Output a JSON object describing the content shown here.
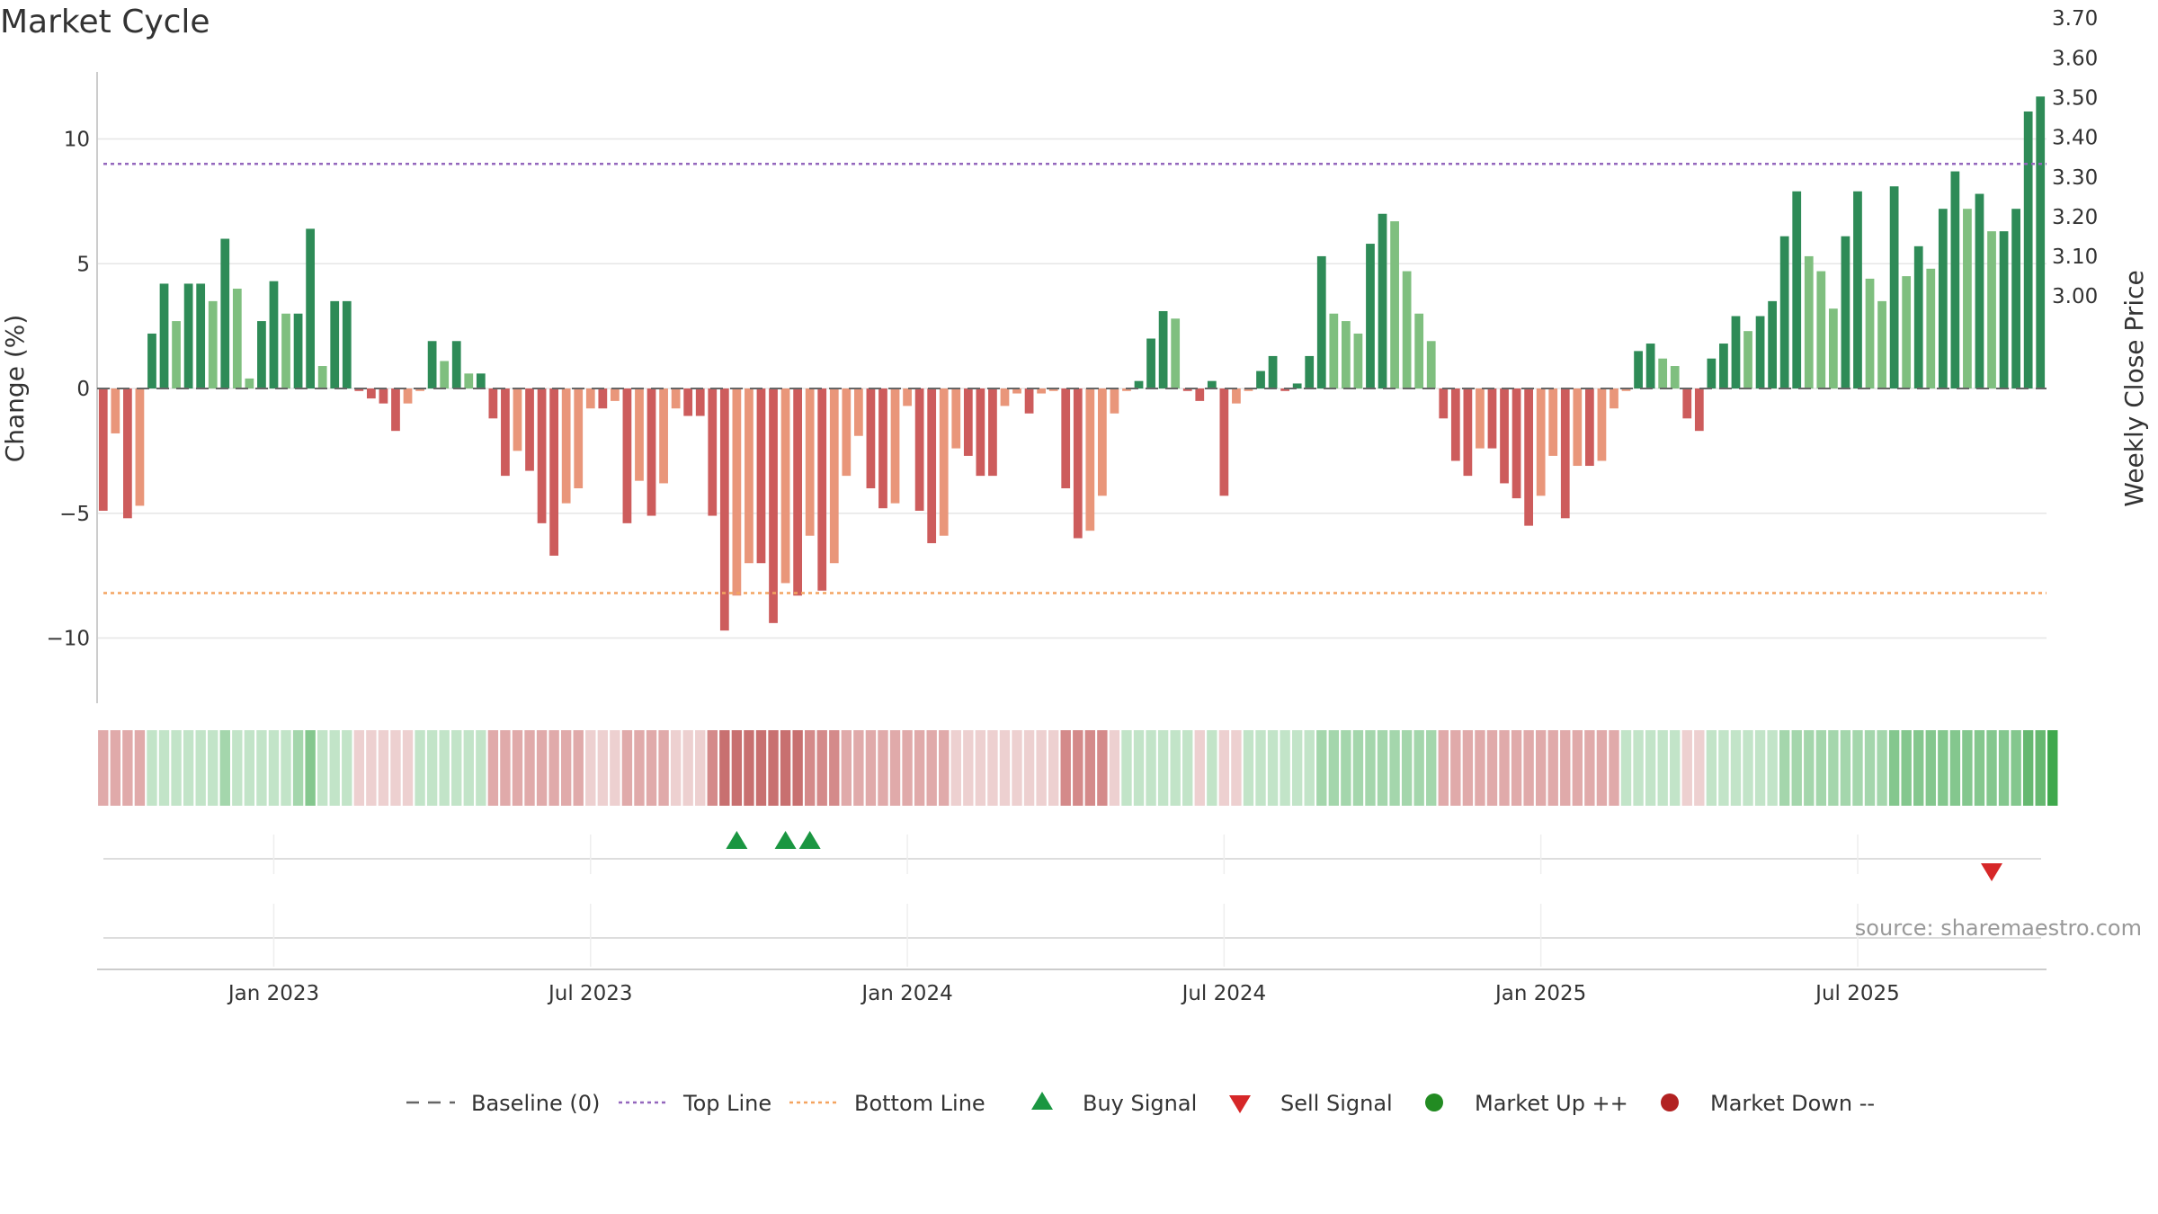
{
  "page": {
    "title": "Market Cycle",
    "source": "source: sharemaestro.com"
  },
  "chart_data": {
    "type": "bar",
    "title": "Market Cycle",
    "ylabel": "Change (%)",
    "y2label": "Weekly Close Price",
    "ylim": [
      -12.5,
      12.5
    ],
    "y2lim": [
      2.975,
      3.75
    ],
    "yticks": [
      {
        "value": 10,
        "label": "10"
      },
      {
        "value": 5,
        "label": "5"
      },
      {
        "value": 0,
        "label": "0"
      },
      {
        "value": -5,
        "label": "−5"
      },
      {
        "value": -10,
        "label": "−10"
      }
    ],
    "y2ticks": [
      {
        "value": 3.7,
        "label": "3.70"
      },
      {
        "value": 3.6,
        "label": "3.60"
      },
      {
        "value": 3.5,
        "label": "3.50"
      },
      {
        "value": 3.4,
        "label": "3.40"
      },
      {
        "value": 3.3,
        "label": "3.30"
      },
      {
        "value": 3.2,
        "label": "3.20"
      },
      {
        "value": 3.1,
        "label": "3.10"
      },
      {
        "value": 3.0,
        "label": "3.00"
      }
    ],
    "xticks": [
      {
        "week": 14,
        "label": "Jan 2023"
      },
      {
        "week": 40,
        "label": "Jul 2023"
      },
      {
        "week": 66,
        "label": "Jan 2024"
      },
      {
        "week": 92,
        "label": "Jul 2024"
      },
      {
        "week": 118,
        "label": "Jan 2025"
      },
      {
        "week": 144,
        "label": "Jul 2025"
      }
    ],
    "top_line": 9.0,
    "bottom_line": -8.2,
    "baseline": 0,
    "values": [
      -4.9,
      -1.8,
      -5.2,
      -4.7,
      2.2,
      4.2,
      2.7,
      4.2,
      4.2,
      3.5,
      6.0,
      4.0,
      0.4,
      2.7,
      4.3,
      3.0,
      3.0,
      6.4,
      0.9,
      3.5,
      3.5,
      -0.1,
      -0.4,
      -0.6,
      -1.7,
      -0.6,
      -0.1,
      1.9,
      1.1,
      1.9,
      0.6,
      0.6,
      -1.2,
      -3.5,
      -2.5,
      -3.3,
      -5.4,
      -6.7,
      -4.6,
      -4.0,
      -0.8,
      -0.8,
      -0.5,
      -5.4,
      -3.7,
      -5.1,
      -3.8,
      -0.8,
      -1.1,
      -1.1,
      -5.1,
      -9.7,
      -8.3,
      -7.0,
      -7.0,
      -9.4,
      -7.8,
      -8.3,
      -5.9,
      -8.1,
      -7.0,
      -3.5,
      -1.9,
      -4.0,
      -4.8,
      -4.6,
      -0.7,
      -4.9,
      -6.2,
      -5.9,
      -2.4,
      -2.7,
      -3.5,
      -3.5,
      -0.7,
      -0.2,
      -1.0,
      -0.2,
      -0.1,
      -4.0,
      -6.0,
      -5.7,
      -4.3,
      -1.0,
      -0.1,
      0.3,
      2.0,
      3.1,
      2.8,
      -0.1,
      -0.5,
      0.3,
      -4.3,
      -0.6,
      -0.1,
      0.7,
      1.3,
      -0.1,
      0.2,
      1.3,
      5.3,
      3.0,
      2.7,
      2.2,
      5.8,
      7.0,
      6.7,
      4.7,
      3.0,
      1.9,
      -1.2,
      -2.9,
      -3.5,
      -2.4,
      -2.4,
      -3.8,
      -4.4,
      -5.5,
      -4.3,
      -2.7,
      -5.2,
      -3.1,
      -3.1,
      -2.9,
      -0.8,
      -0.1,
      1.5,
      1.8,
      1.2,
      0.9,
      -1.2,
      -1.7,
      1.2,
      1.8,
      2.9,
      2.3,
      2.9,
      3.5,
      6.1,
      7.9,
      5.3,
      4.7,
      3.2,
      6.1,
      7.9,
      4.4,
      3.5,
      8.1,
      4.5,
      5.7,
      4.8,
      7.2,
      8.7,
      7.2,
      7.8,
      6.3,
      6.3,
      7.2,
      11.1,
      11.7
    ],
    "heat_levels": [
      -2,
      -2,
      -2,
      -2,
      1,
      1,
      1,
      1,
      1,
      1,
      2,
      1,
      1,
      1,
      1,
      1,
      2,
      3,
      1,
      1,
      1,
      -1,
      -1,
      -1,
      -1,
      -1,
      1,
      1,
      1,
      1,
      1,
      1,
      -2,
      -2,
      -2,
      -2,
      -2,
      -2,
      -2,
      -2,
      -1,
      -1,
      -1,
      -2,
      -2,
      -2,
      -2,
      -1,
      -1,
      -1,
      -3,
      -4,
      -4,
      -4,
      -4,
      -4,
      -4,
      -4,
      -3,
      -3,
      -3,
      -2,
      -2,
      -2,
      -2,
      -2,
      -2,
      -2,
      -2,
      -2,
      -1,
      -1,
      -1,
      -1,
      -1,
      -1,
      -1,
      -1,
      -1,
      -3,
      -3,
      -3,
      -3,
      -1,
      1,
      1,
      1,
      1,
      1,
      1,
      -1,
      1,
      -1,
      -1,
      1,
      1,
      1,
      1,
      1,
      1,
      2,
      2,
      2,
      2,
      2,
      2,
      2,
      2,
      2,
      2,
      -2,
      -2,
      -2,
      -2,
      -2,
      -2,
      -2,
      -2,
      -2,
      -2,
      -2,
      -2,
      -2,
      -2,
      -2,
      1,
      1,
      1,
      1,
      1,
      -1,
      -1,
      1,
      1,
      1,
      1,
      1,
      1,
      2,
      2,
      2,
      2,
      2,
      2,
      2,
      2,
      2,
      3,
      3,
      3,
      3,
      3,
      3,
      3,
      3,
      3,
      3,
      3,
      4,
      4,
      5
    ],
    "buy_signals": [
      52,
      56,
      58
    ],
    "sell_signals": [
      155
    ],
    "legend": [
      {
        "label": "Baseline (0)",
        "marker": "dash",
        "color": "#666666"
      },
      {
        "label": "Top Line",
        "marker": "dotted",
        "color": "#9467bd"
      },
      {
        "label": "Bottom Line",
        "marker": "dotted",
        "color": "#f4a460"
      },
      {
        "label": "Buy Signal",
        "marker": "triangle-up",
        "color": "#1a9641"
      },
      {
        "label": "Sell Signal",
        "marker": "triangle-down",
        "color": "#d62728"
      },
      {
        "label": "Market Up ++",
        "marker": "circle",
        "color": "#228b22"
      },
      {
        "label": "Market Down --",
        "marker": "circle",
        "color": "#b22222"
      }
    ],
    "colors": {
      "up_dark": "#2e8b57",
      "up_light": "#7fbf7f",
      "down_dark": "#cd5c5c",
      "down_light": "#e9967a",
      "top_line": "#9467bd",
      "bottom_line": "#f4a460",
      "grid": "#e6e6e6",
      "buy": "#1a9641",
      "sell": "#d62728"
    }
  }
}
